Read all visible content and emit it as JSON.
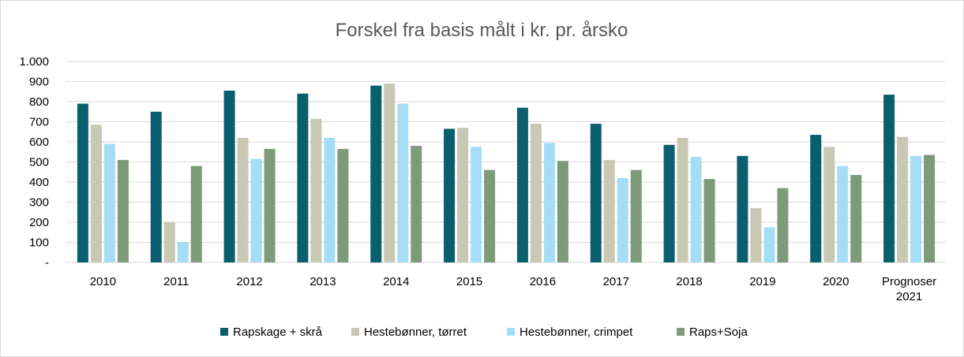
{
  "chart_data": {
    "type": "bar",
    "title": "Forskel fra basis målt i kr. pr. årsko",
    "xlabel": "",
    "ylabel": "",
    "ylim": [
      0,
      1000
    ],
    "yticks": [
      {
        "value": 0,
        "label": "-"
      },
      {
        "value": 100,
        "label": "100"
      },
      {
        "value": 200,
        "label": "200"
      },
      {
        "value": 300,
        "label": "300"
      },
      {
        "value": 400,
        "label": "400"
      },
      {
        "value": 500,
        "label": "500"
      },
      {
        "value": 600,
        "label": "600"
      },
      {
        "value": 700,
        "label": "700"
      },
      {
        "value": 800,
        "label": "800"
      },
      {
        "value": 900,
        "label": "900"
      },
      {
        "value": 1000,
        "label": "1.000"
      }
    ],
    "grid": true,
    "legend_position": "bottom",
    "categories": [
      [
        "2010"
      ],
      [
        "2011"
      ],
      [
        "2012"
      ],
      [
        "2013"
      ],
      [
        "2014"
      ],
      [
        "2015"
      ],
      [
        "2016"
      ],
      [
        "2017"
      ],
      [
        "2018"
      ],
      [
        "2019"
      ],
      [
        "2020"
      ],
      [
        "Prognoser",
        "2021"
      ]
    ],
    "series": [
      {
        "name": "Rapskage + skrå",
        "color": "#0a5f6e",
        "values": [
          790,
          750,
          855,
          840,
          880,
          665,
          770,
          690,
          585,
          530,
          635,
          835
        ]
      },
      {
        "name": "Hestebønner, tørret",
        "color": "#c8c8b4",
        "values": [
          685,
          200,
          620,
          715,
          890,
          670,
          690,
          510,
          620,
          270,
          575,
          625
        ]
      },
      {
        "name": "Hestebønner, crimpet",
        "color": "#a6ddf6",
        "values": [
          590,
          100,
          515,
          620,
          790,
          575,
          595,
          420,
          525,
          175,
          480,
          530
        ]
      },
      {
        "name": "Raps+Soja",
        "color": "#7d9b78",
        "values": [
          510,
          480,
          565,
          565,
          580,
          460,
          505,
          460,
          415,
          370,
          435,
          535
        ]
      }
    ]
  }
}
